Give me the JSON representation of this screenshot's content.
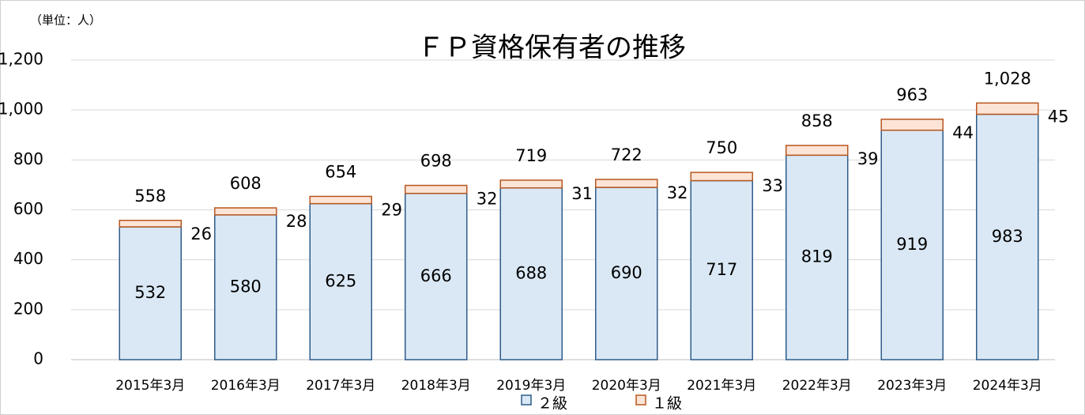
{
  "chart_data": {
    "type": "stacked_bar",
    "title": "ＦＰ資格保有者の推移",
    "unit_label": "（単位：人）",
    "categories": [
      "2015年3月",
      "2016年3月",
      "2017年3月",
      "2018年3月",
      "2019年3月",
      "2020年3月",
      "2021年3月",
      "2022年3月",
      "2023年3月",
      "2024年3月"
    ],
    "series": [
      {
        "name": "２級",
        "color": "#dae8f5",
        "edge": "#2e5c8a",
        "values": [
          532,
          580,
          625,
          666,
          688,
          690,
          717,
          819,
          919,
          983
        ]
      },
      {
        "name": "１級",
        "color": "#fce4d6",
        "edge": "#b8561f",
        "values": [
          26,
          28,
          29,
          32,
          31,
          32,
          33,
          39,
          44,
          45
        ]
      }
    ],
    "totals": [
      558,
      608,
      654,
      698,
      719,
      722,
      750,
      858,
      963,
      1028
    ],
    "total_labels": [
      "558",
      "608",
      "654",
      "698",
      "719",
      "722",
      "750",
      "858",
      "963",
      "1,028"
    ],
    "ylim": [
      0,
      1200
    ],
    "yticks": [
      0,
      200,
      400,
      600,
      800,
      {
        "value": 1000,
        "label": "1,000"
      },
      {
        "value": 1200,
        "label": "1,200"
      }
    ],
    "grid": true,
    "legend": "bottom"
  }
}
